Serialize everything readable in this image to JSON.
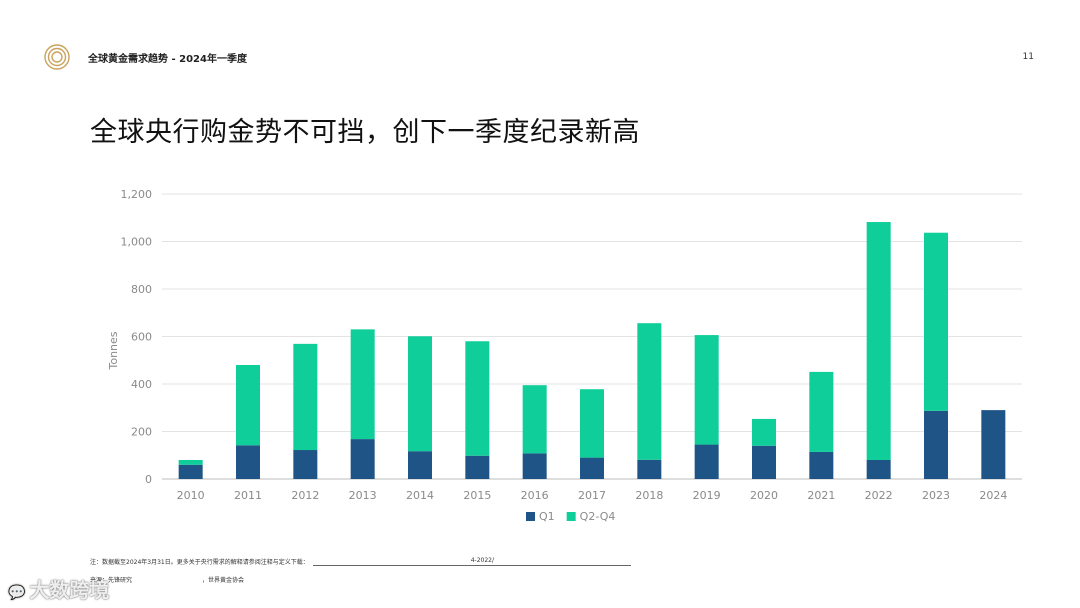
{
  "header": {
    "title": "全球黄金需求趋势 - 2024年一季度",
    "page_number": "11"
  },
  "main": {
    "title": "全球央行购金势不可挡，创下一季度纪录新高"
  },
  "chart_data": {
    "type": "bar",
    "stacked": true,
    "title": "",
    "xlabel": "",
    "ylabel": "Tonnes",
    "ylim": [
      0,
      1200
    ],
    "yticks": [
      0,
      200,
      400,
      600,
      800,
      1000,
      1200
    ],
    "ytick_labels": [
      "0",
      "200",
      "400",
      "600",
      "800",
      "1,000",
      "1,200"
    ],
    "grid": true,
    "legend_position": "bottom-center",
    "categories": [
      "2010",
      "2011",
      "2012",
      "2013",
      "2014",
      "2015",
      "2016",
      "2017",
      "2018",
      "2019",
      "2020",
      "2021",
      "2022",
      "2023",
      "2024"
    ],
    "series": [
      {
        "name": "Q1",
        "color": "#1f5486",
        "values": [
          60,
          142,
          122,
          168,
          117,
          98,
          108,
          90,
          81,
          145,
          140,
          114,
          80,
          287,
          290
        ]
      },
      {
        "name": "Q2-Q4",
        "color": "#0fce99",
        "values": [
          20,
          338,
          447,
          462,
          484,
          482,
          287,
          288,
          575,
          461,
          113,
          337,
          1002,
          750,
          0
        ]
      }
    ]
  },
  "footnote": {
    "text": "注：数据截至2024年3月31日。更多关于央行需求的解释请参阅注释与定义下载：",
    "link_fragment": "4-2022/"
  },
  "source": {
    "label": "来源：先锋研究",
    "org": "，世界黄金协会"
  },
  "watermark": {
    "text": "大数跨境"
  },
  "icons": {
    "logo": "gold-ring-logo-icon",
    "watermark": "chat-bubble-icon"
  }
}
